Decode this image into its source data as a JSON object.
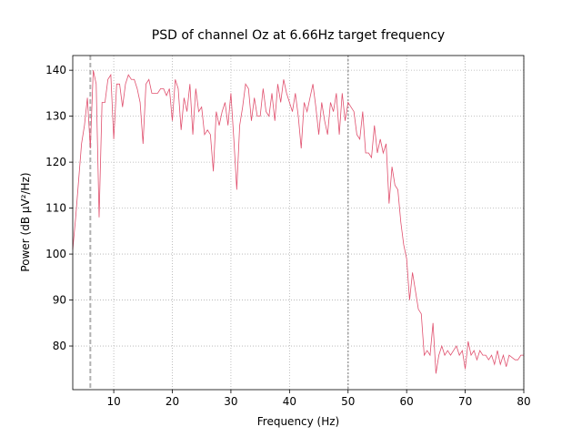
{
  "chart_data": {
    "type": "line",
    "title": "PSD of channel Oz at 6.66Hz target frequency",
    "x_label": "Frequency (Hz)",
    "y_label": "Power (dB µV²/Hz)",
    "xlim": [
      3,
      80
    ],
    "ylim": [
      70.5,
      143.2
    ],
    "xticks": [
      10,
      20,
      30,
      40,
      50,
      60,
      70,
      80
    ],
    "yticks": [
      80,
      90,
      100,
      110,
      120,
      130,
      140
    ],
    "grid": true,
    "x": [
      3,
      3.5,
      4,
      4.5,
      5,
      5.5,
      6,
      6.5,
      7,
      7.5,
      8,
      8.5,
      9,
      9.5,
      10,
      10.5,
      11,
      11.5,
      12,
      12.5,
      13,
      13.5,
      14,
      14.5,
      15,
      15.5,
      16,
      16.5,
      17,
      17.5,
      18,
      18.5,
      19,
      19.5,
      20,
      20.5,
      21,
      21.5,
      22,
      22.5,
      23,
      23.5,
      24,
      24.5,
      25,
      25.5,
      26,
      26.5,
      27,
      27.5,
      28,
      28.5,
      29,
      29.5,
      30,
      30.5,
      31,
      31.5,
      32,
      32.5,
      33,
      33.5,
      34,
      34.5,
      35,
      35.5,
      36,
      36.5,
      37,
      37.5,
      38,
      38.5,
      39,
      39.5,
      40,
      40.5,
      41,
      41.5,
      42,
      42.5,
      43,
      43.5,
      44,
      44.5,
      45,
      45.5,
      46,
      46.5,
      47,
      47.5,
      48,
      48.5,
      49,
      49.5,
      50,
      50.5,
      51,
      51.5,
      52,
      52.5,
      53,
      53.5,
      54,
      54.5,
      55,
      55.5,
      56,
      56.5,
      57,
      57.5,
      58,
      58.5,
      59,
      59.5,
      60,
      60.5,
      61,
      61.5,
      62,
      62.5,
      63,
      63.5,
      64,
      64.5,
      65,
      65.5,
      66,
      66.5,
      67,
      67.5,
      68,
      68.5,
      69,
      69.5,
      70,
      70.5,
      71,
      71.5,
      72,
      72.5,
      73,
      73.5,
      74,
      74.5,
      75,
      75.5,
      76,
      76.5,
      77,
      77.5,
      78,
      78.5,
      79,
      79.5,
      80
    ],
    "series": [
      {
        "color": "#e0506e",
        "values": [
          101,
          108,
          116,
          124,
          128,
          134,
          123,
          140,
          137,
          108,
          133,
          133,
          138,
          139,
          125,
          137,
          137,
          132,
          137,
          139,
          138,
          138,
          136,
          133,
          124,
          137,
          138,
          135,
          135,
          135,
          136,
          136,
          134.5,
          136,
          129,
          138,
          136,
          127,
          134,
          131,
          137,
          126,
          136,
          131,
          132,
          126,
          127,
          126,
          118,
          131,
          128,
          131,
          133,
          128,
          135,
          125,
          114,
          128,
          132,
          137,
          136,
          129,
          134,
          130,
          130,
          136,
          131,
          130,
          135,
          129,
          137,
          133,
          138,
          135,
          133,
          131,
          135,
          130,
          123,
          133,
          131,
          134,
          137,
          132,
          126,
          133,
          129,
          126,
          133,
          131,
          135,
          126,
          135,
          129,
          133,
          132,
          131,
          126,
          125,
          131,
          122,
          122,
          121,
          128,
          122,
          125,
          122,
          124,
          111,
          119,
          115,
          114,
          107,
          102,
          99,
          90,
          96,
          92,
          88,
          87,
          78,
          79,
          78,
          85,
          74,
          78,
          80,
          78,
          79,
          78,
          79,
          80,
          78,
          79,
          75,
          81,
          78,
          79,
          77,
          79,
          78,
          78,
          77,
          78,
          76,
          79,
          76,
          78,
          75.5,
          78,
          77.5,
          77,
          77,
          78,
          78
        ]
      }
    ],
    "vlines": [
      {
        "x": 6,
        "style": "dashed",
        "color": "#b0b0b0"
      },
      {
        "x": 50,
        "style": "dotted",
        "color": "#a0a0a0"
      }
    ]
  }
}
